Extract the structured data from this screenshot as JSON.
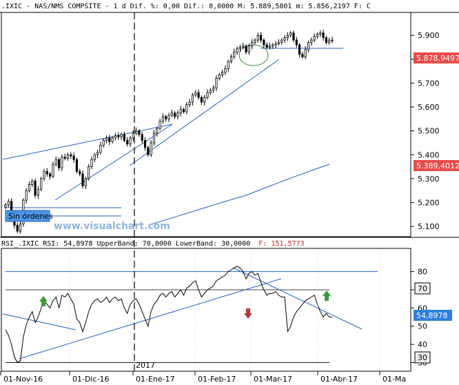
{
  "header": {
    "symbol": ".IXIC",
    "name": "NAS/NMS COMPSITE",
    "interval": "1 d",
    "dif_pct_label": "Dif. %:",
    "dif_pct": "0,00",
    "dif_label": "Dif.:",
    "dif": "0,0000",
    "max_label": "M:",
    "max": "5.889,5801",
    "min_label": "m:",
    "min": "5.856,2197",
    "close_label": "F: C"
  },
  "watermark": "www.visualchart.com",
  "orders_label": "Sin órdenes",
  "year_label": "2017",
  "colors": {
    "up": "#ffffff",
    "down": "#000000",
    "trend": "#1f5fbf",
    "ma": "#1f5fbf",
    "tag_red": "#e84a4a",
    "tag_blue": "#2f7fdc",
    "arrow_up": "#3a9b3a",
    "arrow_down": "#b23a3a"
  },
  "chart_data": [
    {
      "type": "candlestick",
      "yaxis_ticks": [
        "5.100",
        "5.200",
        "5.300",
        "5.400",
        "5.500",
        "5.600",
        "5.700",
        "5.800",
        "5.900"
      ],
      "ylim": [
        5060,
        5990
      ],
      "price_tags": [
        "5.878,9497",
        "5.389,4012"
      ],
      "xaxis_ticks": [
        "01-Nov-16",
        "01-Dic-16",
        "01-Ene-17",
        "01-Feb-17",
        "01-Mar-17",
        "01-Abr-17",
        "01-Ma"
      ],
      "close": [
        5190,
        5205,
        5160,
        5105,
        5080,
        5110,
        5210,
        5250,
        5275,
        5290,
        5230,
        5255,
        5300,
        5330,
        5320,
        5310,
        5360,
        5380,
        5345,
        5390,
        5385,
        5400,
        5395,
        5380,
        5330,
        5320,
        5270,
        5300,
        5350,
        5380,
        5400,
        5410,
        5440,
        5460,
        5470,
        5455,
        5470,
        5480,
        5475,
        5485,
        5460,
        5445,
        5470,
        5490,
        5500,
        5485,
        5460,
        5430,
        5400,
        5450,
        5490,
        5510,
        5540,
        5560,
        5550,
        5565,
        5575,
        5560,
        5575,
        5590,
        5580,
        5610,
        5620,
        5650,
        5660,
        5640,
        5620,
        5640,
        5660,
        5670,
        5680,
        5720,
        5735,
        5745,
        5760,
        5790,
        5810,
        5830,
        5845,
        5850,
        5855,
        5830,
        5855,
        5870,
        5880,
        5900,
        5880,
        5860,
        5850,
        5855,
        5860,
        5865,
        5870,
        5880,
        5890,
        5900,
        5910,
        5880,
        5860,
        5820,
        5810,
        5840,
        5870,
        5880,
        5895,
        5905,
        5910,
        5890,
        5870,
        5880,
        5878
      ],
      "ma_series": [
        5050,
        5070,
        5090,
        5110,
        5130,
        5150,
        5170,
        5190,
        5210,
        5230,
        5250,
        5270,
        5290,
        5310,
        5330,
        5350,
        5370,
        5389
      ]
    },
    {
      "type": "line",
      "title": "RSI_.IXIC RSI: 54,8978 UpperBand: 70,0000 LowerBand: 30,0000",
      "extra": "F: 151,5773",
      "series_name": "RSI",
      "yaxis_ticks": [
        "30",
        "40",
        "50",
        "60",
        "70",
        "80"
      ],
      "ylim": [
        26,
        92
      ],
      "bands": [
        30,
        70
      ],
      "tags": [
        "70",
        "54,8978",
        "30"
      ],
      "values": [
        48,
        45,
        40,
        33,
        30,
        31,
        44,
        51,
        55,
        58,
        52,
        55,
        60,
        64,
        62,
        60,
        64,
        66,
        60,
        67,
        66,
        68,
        65,
        62,
        54,
        52,
        47,
        52,
        58,
        62,
        64,
        65,
        63,
        64,
        66,
        63,
        65,
        66,
        64,
        65,
        60,
        57,
        62,
        64,
        65,
        62,
        58,
        54,
        50,
        58,
        62,
        64,
        67,
        68,
        66,
        68,
        69,
        66,
        68,
        70,
        67,
        71,
        72,
        74,
        75,
        70,
        66,
        68,
        70,
        71,
        72,
        75,
        76,
        77,
        78,
        80,
        81,
        82,
        83,
        82,
        80,
        76,
        79,
        80,
        78,
        79,
        74,
        70,
        67,
        68,
        68,
        69,
        67,
        66,
        66,
        47,
        50,
        55,
        58,
        60,
        62,
        64,
        65,
        66,
        67,
        62,
        58,
        55,
        57,
        55,
        54.9
      ]
    }
  ]
}
